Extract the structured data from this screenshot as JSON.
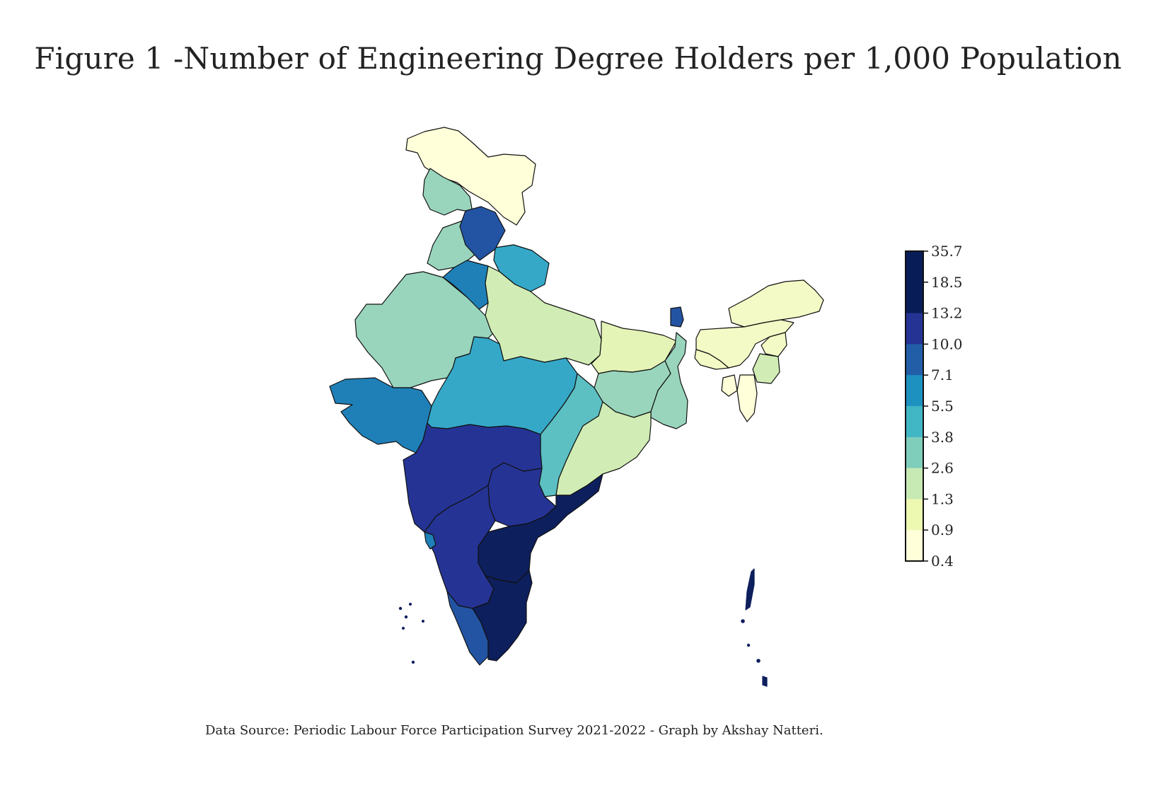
{
  "title": "Figure 1 -Number of Engineering Degree Holders per 1,000 Population",
  "source": "Data Source: Periodic Labour Force Participation Survey 2021-2022 - Graph by Akshay Natteri.",
  "colorbar": {
    "ticks": [
      "35.7",
      "18.5",
      "13.2",
      "10.0",
      "7.1",
      "5.5",
      "3.8",
      "2.6",
      "1.3",
      "0.9",
      "0.4"
    ],
    "colors": [
      "#081d58",
      "#253494",
      "#225ea8",
      "#1d91c0",
      "#41b6c4",
      "#7fcdbb",
      "#c7e9b4",
      "#edf8b1",
      "#ffffd9"
    ]
  },
  "palette": {
    "c1": "#ffffd9",
    "c2": "#f3fac5",
    "c3": "#e4f4b6",
    "c4": "#d1edb5",
    "c5": "#99d5bd",
    "c6": "#5cbfc2",
    "c7": "#35a8c8",
    "c8": "#1f80b8",
    "c9": "#2354a3",
    "c10": "#253494",
    "c11": "#0d1f5c"
  }
}
